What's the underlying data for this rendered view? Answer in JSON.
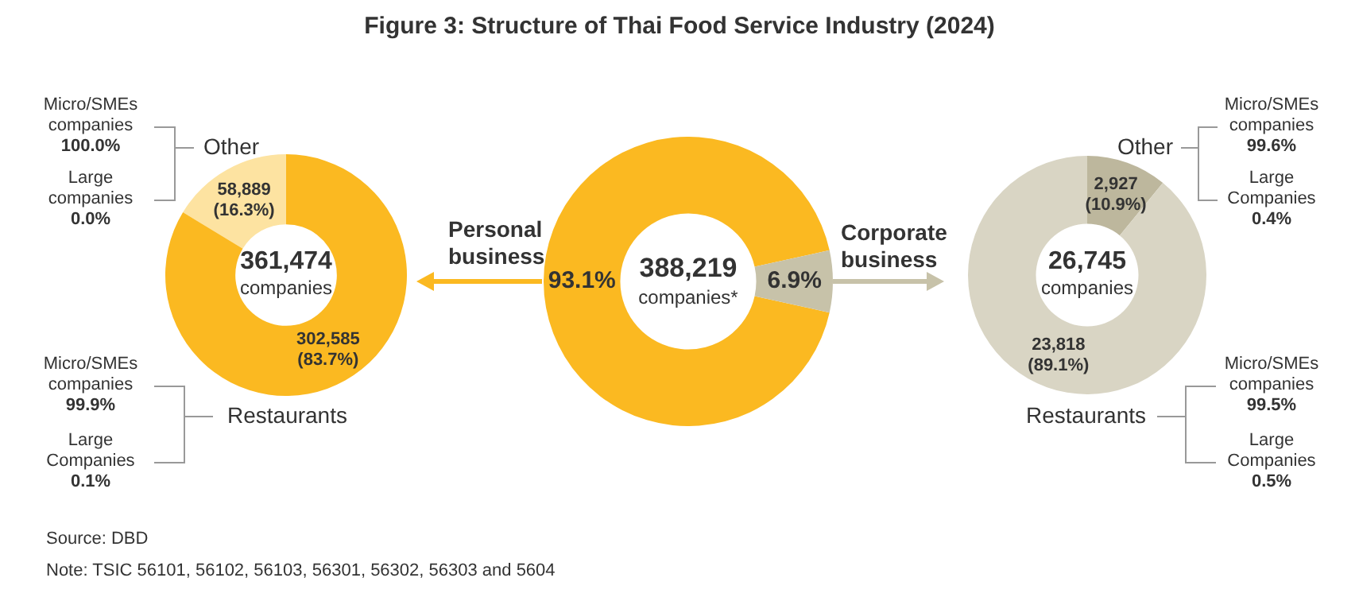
{
  "chart_data": [
    {
      "type": "donut",
      "categories": [
        "Other",
        "Restaurants"
      ],
      "values": [
        58889,
        302585
      ],
      "colors": [
        "#fde3a1",
        "#fbb921"
      ],
      "value_labels": [
        "58,889\n(16.3%)",
        "302,585\n(83.7%)"
      ],
      "annotations": [
        "361,474",
        "companies",
        "Micro/SMEs\ncompanies\n100.0%",
        "Large\ncompanies\n0.0%",
        "Micro/SMEs\ncompanies\n99.9%",
        "Large\nCompanies\n0.1%"
      ]
    },
    {
      "type": "donut",
      "title": "Figure 3: Structure of Thai Food Service Industry (2024)",
      "categories": [
        "Personal business",
        "Corporate business"
      ],
      "values": [
        93.1,
        6.9
      ],
      "colors": [
        "#fbb921",
        "#c7c2a9"
      ],
      "value_labels": [
        "93.1%",
        "6.9%"
      ],
      "annotations": [
        "388,219",
        "companies*",
        "Source: DBD",
        "Note: TSIC 56101, 56102, 56103, 56301, 56302, 56303 and 5604"
      ]
    },
    {
      "type": "donut",
      "categories": [
        "Other",
        "Restaurants"
      ],
      "values": [
        2927,
        23818
      ],
      "colors": [
        "#bdb79d",
        "#d9d5c4"
      ],
      "value_labels": [
        "2,927\n(10.9%)",
        "23,818\n(89.1%)"
      ],
      "annotations": [
        "26,745",
        "companies",
        "Micro/SMEs\ncompanies\n99.6%",
        "Large\nCompanies\n0.4%",
        "Micro/SMEs\ncompanies\n99.5%",
        "Large\nCompanies\n0.5%"
      ]
    }
  ]
}
